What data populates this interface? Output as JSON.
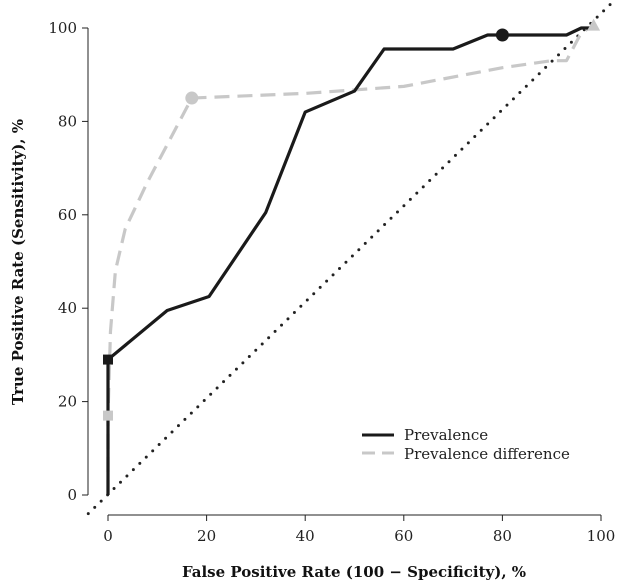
{
  "chart_data": {
    "type": "line",
    "title": "",
    "xlabel": "False Positive Rate (100 − Specificity), %",
    "ylabel": "True Positive Rate (Sensitivity), %",
    "xlim": [
      0,
      100
    ],
    "ylim": [
      0,
      100
    ],
    "xticks": [
      "0",
      "20",
      "40",
      "60",
      "80",
      "100"
    ],
    "yticks": [
      "0",
      "20",
      "40",
      "60",
      "80",
      "100"
    ],
    "grid": false,
    "legend_position": "bottom-right",
    "reference_line": {
      "style": "dotted",
      "from": [
        0,
        0
      ],
      "to": [
        100,
        100
      ],
      "color": "#222222"
    },
    "series": [
      {
        "name": "Prevalence",
        "style": "solid",
        "color": "#1a1a1a",
        "x": [
          0,
          0,
          12,
          20.5,
          32,
          40,
          50,
          56,
          70,
          77,
          80,
          86,
          93,
          96,
          98,
          98
        ],
        "y": [
          0,
          29,
          39.5,
          42.5,
          60.5,
          82,
          86.5,
          95.5,
          95.5,
          98.5,
          98.5,
          98.5,
          98.5,
          100,
          100,
          100
        ],
        "markers": [
          {
            "shape": "square",
            "x": 0,
            "y": 29
          },
          {
            "shape": "circle",
            "x": 80,
            "y": 98.5
          }
        ]
      },
      {
        "name": "Prevalence difference",
        "style": "dashed",
        "color": "#c8c8c8",
        "x": [
          0,
          0,
          0.5,
          1.5,
          3.5,
          8,
          17,
          40,
          60,
          80,
          90,
          93,
          96,
          98.5
        ],
        "y": [
          0,
          17,
          35,
          48,
          57,
          67,
          85,
          86,
          87.5,
          91.5,
          93,
          93,
          99,
          100.5
        ],
        "markers": [
          {
            "shape": "square",
            "x": 0,
            "y": 17
          },
          {
            "shape": "circle",
            "x": 17,
            "y": 85
          },
          {
            "shape": "triangle",
            "x": 98.5,
            "y": 100.5
          }
        ]
      }
    ]
  }
}
